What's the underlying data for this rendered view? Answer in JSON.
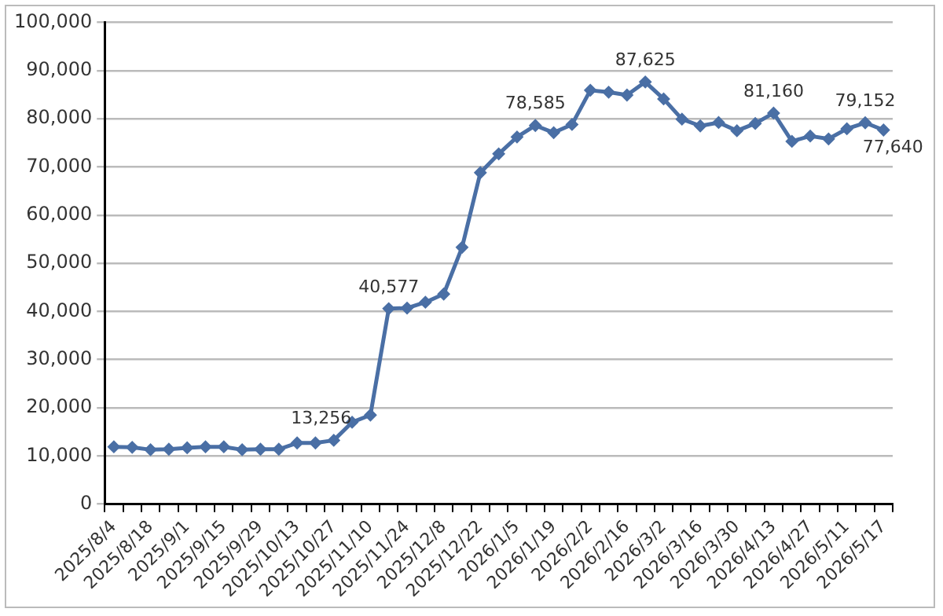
{
  "chart_data": {
    "type": "line",
    "categories": [
      "2025/8/4",
      null,
      "2025/8/18",
      null,
      "2025/9/1",
      null,
      "2025/9/15",
      null,
      "2025/9/29",
      null,
      "2025/10/13",
      null,
      "2025/10/27",
      null,
      "2025/11/10",
      null,
      "2025/11/24",
      null,
      "2025/12/8",
      null,
      "2025/12/22",
      null,
      "2026/1/5",
      null,
      "2026/1/19",
      null,
      "2026/2/2",
      null,
      "2026/2/16",
      null,
      "2026/3/2",
      null,
      "2026/3/16",
      null,
      "2026/3/30",
      null,
      "2026/4/13",
      null,
      "2026/4/27",
      null,
      "2026/5/11",
      null,
      "2026/5/17"
    ],
    "series": [
      {
        "color": "#4a6fa5",
        "values": [
          11900,
          11800,
          11300,
          11400,
          11700,
          11900,
          11900,
          11300,
          11400,
          11400,
          12700,
          12700,
          13256,
          17000,
          18500,
          40577,
          40700,
          41900,
          43600,
          53300,
          68800,
          72700,
          76200,
          78585,
          77100,
          78800,
          85900,
          85500,
          84900,
          87625,
          84100,
          79900,
          78500,
          79200,
          77500,
          79000,
          81160,
          75300,
          76400,
          75800,
          77900,
          79152,
          77640
        ],
        "value_labels": [
          null,
          null,
          null,
          null,
          null,
          null,
          null,
          null,
          null,
          null,
          null,
          null,
          "13,256",
          null,
          null,
          "40,577",
          null,
          null,
          null,
          null,
          null,
          null,
          null,
          "78,585",
          null,
          null,
          null,
          null,
          null,
          "87,625",
          null,
          null,
          null,
          null,
          null,
          null,
          "81,160",
          null,
          null,
          null,
          null,
          "79,152",
          "77,640"
        ]
      }
    ],
    "ylim": [
      0,
      100000
    ],
    "yticks": [
      {
        "value": 0,
        "label": "0"
      },
      {
        "value": 10000,
        "label": "10,000"
      },
      {
        "value": 20000,
        "label": "20,000"
      },
      {
        "value": 30000,
        "label": "30,000"
      },
      {
        "value": 40000,
        "label": "40,000"
      },
      {
        "value": 50000,
        "label": "50,000"
      },
      {
        "value": 60000,
        "label": "60,000"
      },
      {
        "value": 70000,
        "label": "70,000"
      },
      {
        "value": 80000,
        "label": "80,000"
      },
      {
        "value": 90000,
        "label": "90,000"
      },
      {
        "value": 100000,
        "label": "100,000"
      }
    ],
    "grid": "y",
    "legend": false,
    "marker": "diamond",
    "line_style": "solid"
  }
}
